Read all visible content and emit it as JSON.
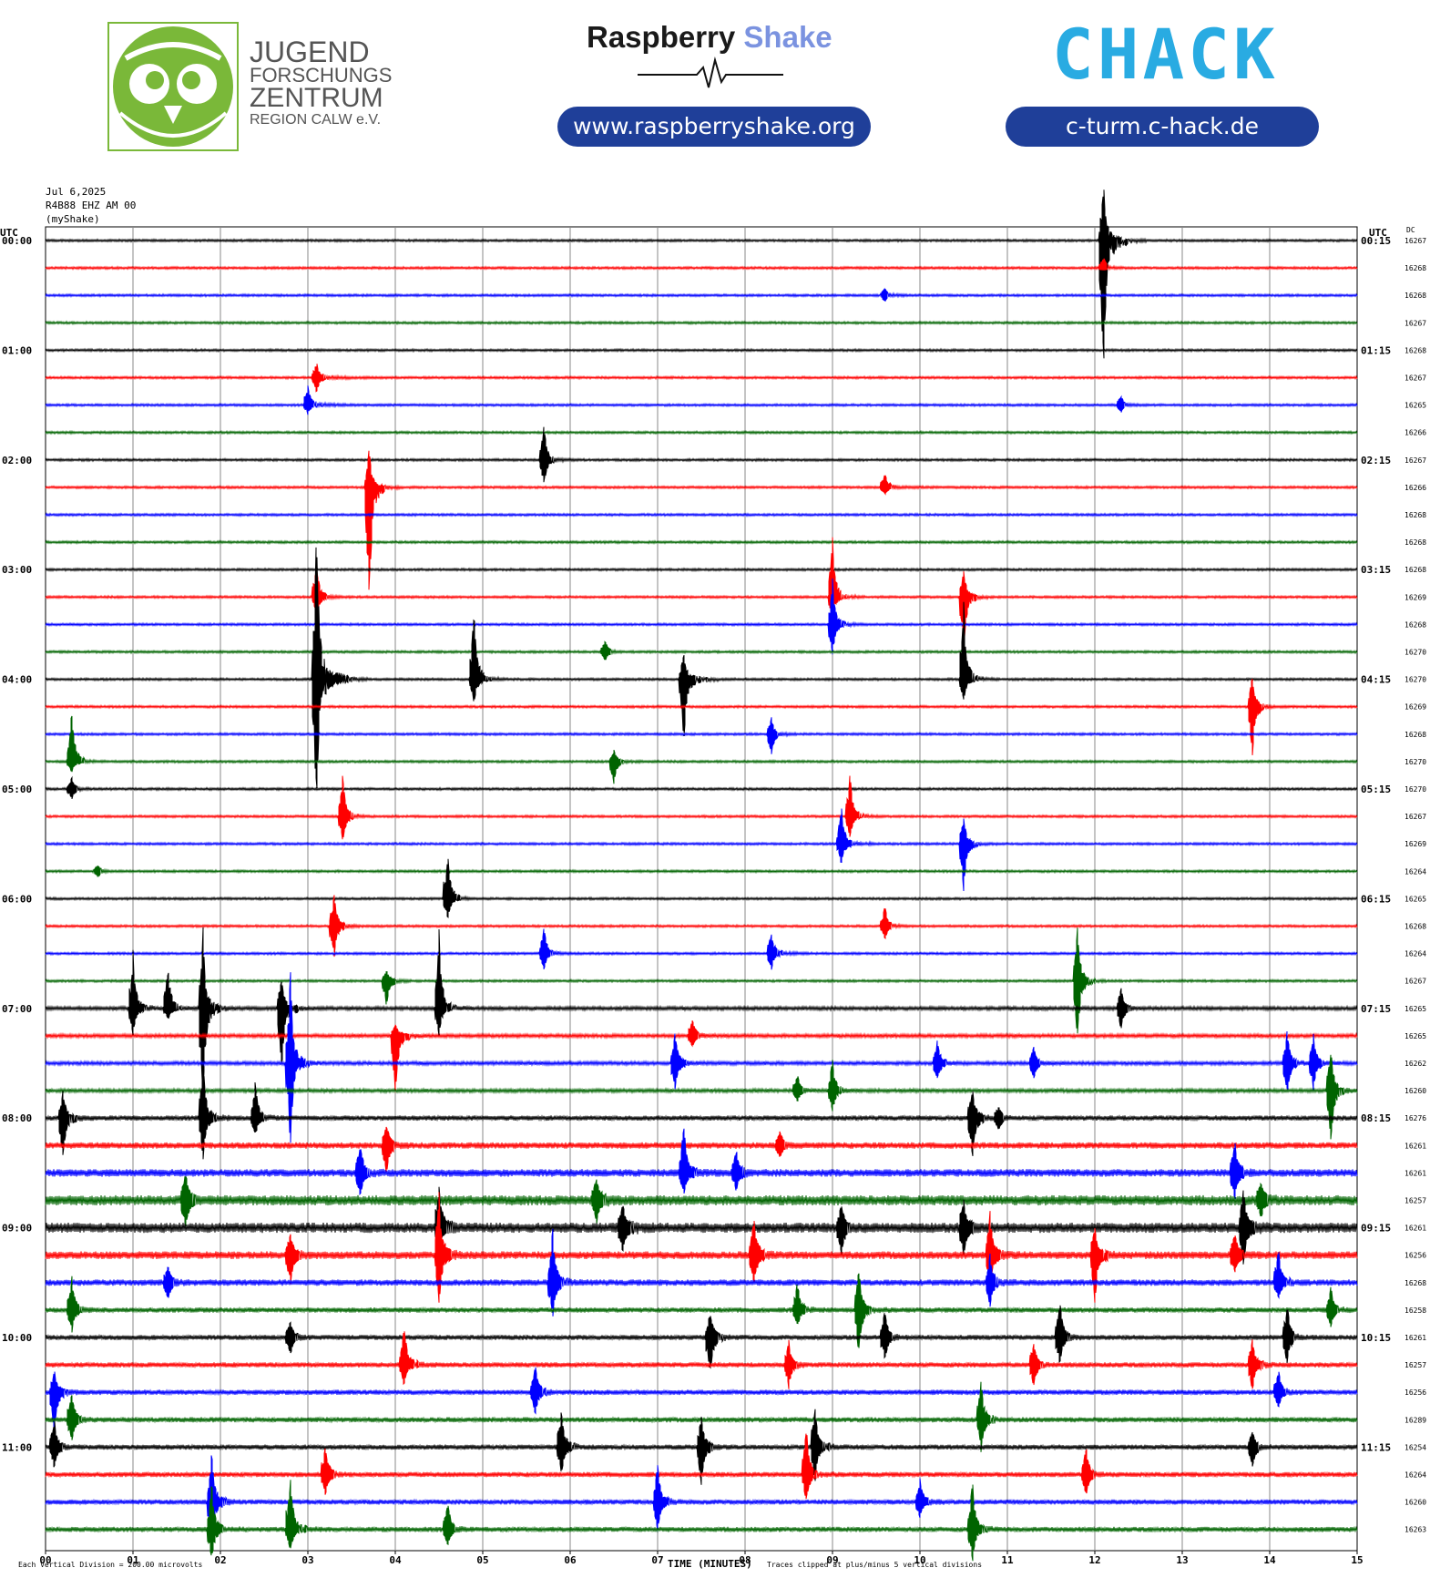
{
  "logos": {
    "jfz": {
      "line1": "JUGEND",
      "line2": "FORSCHUNGS",
      "line3": "ZENTRUM",
      "line4": "REGION CALW e.V.",
      "icon": "owl-icon",
      "color": "#7ab839"
    },
    "raspberry_shake": {
      "word1": "Raspberry",
      "word2": "Shake",
      "url": "www.raspberryshake.org",
      "icon": "seismogram-icon"
    },
    "chack": {
      "wordmark": "CHACK",
      "url": "c-turm.c-hack.de",
      "colors": [
        "#7ac142",
        "#29abe2"
      ]
    }
  },
  "chart_data": {
    "type": "helicorder",
    "date": "Jul 6,2025",
    "station": "R4B88 EHZ AM 00",
    "network": "(myShake)",
    "left_axis_title": "UTC",
    "right_axis_title": "UTC",
    "dc_title": "DC",
    "left_hour_labels": [
      "00:00",
      "01:00",
      "02:00",
      "03:00",
      "04:00",
      "05:00",
      "06:00",
      "07:00",
      "08:00",
      "09:00",
      "10:00",
      "11:00"
    ],
    "right_hour_labels": [
      "00:15",
      "01:15",
      "02:15",
      "03:15",
      "04:15",
      "05:15",
      "06:15",
      "07:15",
      "08:15",
      "09:15",
      "10:15",
      "11:15"
    ],
    "dc_values": [
      16267,
      16268,
      16268,
      16267,
      16268,
      16267,
      16265,
      16266,
      16267,
      16266,
      16268,
      16268,
      16268,
      16269,
      16268,
      16270,
      16270,
      16269,
      16268,
      16270,
      16270,
      16267,
      16269,
      16264,
      16265,
      16268,
      16264,
      16267,
      16265,
      16265,
      16262,
      16260,
      16276,
      16261,
      16261,
      16257,
      16261,
      16256,
      16268,
      16258,
      16261,
      16257,
      16256,
      16289,
      16254,
      16264,
      16260,
      16263
    ],
    "x_ticks": [
      "00",
      "01",
      "02",
      "03",
      "04",
      "05",
      "06",
      "07",
      "08",
      "09",
      "10",
      "11",
      "12",
      "13",
      "14",
      "15"
    ],
    "xlabel": "TIME (MINUTES)",
    "footer_left": "Each Vertical Division =  200.00 microvolts",
    "footer_right": "Traces clipped at plus/minus 5 vertical divisions",
    "trace_colors": [
      "#000000",
      "#ff0000",
      "#0000ff",
      "#006400"
    ],
    "rows": 48,
    "minutes_per_row": 15,
    "noise_level": [
      1,
      1,
      1,
      1,
      1,
      1,
      1,
      1,
      1,
      1,
      1,
      1,
      1,
      1,
      1,
      1,
      1,
      1,
      1,
      1,
      1,
      1,
      1,
      1,
      1,
      1,
      1,
      1,
      1.5,
      1.5,
      1.5,
      1.5,
      2,
      2.5,
      3,
      4,
      4,
      3,
      2.5,
      2,
      2,
      2,
      2,
      2,
      2,
      2,
      2,
      2
    ],
    "events": [
      [
        0,
        12.1,
        55,
        140,
        2.5
      ],
      [
        1,
        12.1,
        10,
        1,
        2
      ],
      [
        2,
        9.6,
        6,
        5,
        3
      ],
      [
        5,
        3.1,
        14,
        14,
        4
      ],
      [
        6,
        3.0,
        18,
        8,
        4
      ],
      [
        6,
        12.3,
        8,
        6,
        2
      ],
      [
        8,
        5.7,
        32,
        25,
        2
      ],
      [
        9,
        3.7,
        35,
        120,
        2
      ],
      [
        9,
        9.6,
        12,
        6,
        4
      ],
      [
        13,
        3.1,
        30,
        20,
        2
      ],
      [
        13,
        9.0,
        55,
        20,
        2
      ],
      [
        13,
        10.5,
        25,
        50,
        2
      ],
      [
        14,
        9.0,
        40,
        30,
        2
      ],
      [
        15,
        6.4,
        10,
        8,
        2
      ],
      [
        16,
        3.1,
        140,
        130,
        3
      ],
      [
        16,
        4.9,
        70,
        25,
        2
      ],
      [
        16,
        7.3,
        25,
        60,
        3
      ],
      [
        16,
        10.5,
        70,
        20,
        2
      ],
      [
        17,
        13.8,
        30,
        50,
        2
      ],
      [
        18,
        8.3,
        15,
        20,
        2
      ],
      [
        19,
        6.5,
        10,
        20,
        2
      ],
      [
        19,
        0.3,
        50,
        10,
        2
      ],
      [
        20,
        0.3,
        10,
        10,
        2
      ],
      [
        21,
        3.4,
        40,
        25,
        2
      ],
      [
        21,
        9.2,
        40,
        20,
        2
      ],
      [
        22,
        9.1,
        35,
        20,
        3
      ],
      [
        22,
        10.5,
        25,
        45,
        2
      ],
      [
        23,
        0.6,
        5,
        5,
        2
      ],
      [
        24,
        4.6,
        45,
        20,
        2
      ],
      [
        25,
        3.3,
        30,
        30,
        2
      ],
      [
        25,
        9.6,
        18,
        12,
        2
      ],
      [
        26,
        5.7,
        25,
        15,
        2
      ],
      [
        26,
        8.3,
        20,
        15,
        3
      ],
      [
        27,
        3.9,
        10,
        25,
        2
      ],
      [
        27,
        11.8,
        50,
        60,
        2
      ],
      [
        28,
        1.0,
        50,
        25,
        2
      ],
      [
        28,
        1.4,
        40,
        10,
        2
      ],
      [
        28,
        1.8,
        75,
        90,
        2
      ],
      [
        28,
        2.7,
        30,
        60,
        2
      ],
      [
        28,
        4.5,
        70,
        25,
        2
      ],
      [
        28,
        12.3,
        18,
        20,
        2
      ],
      [
        29,
        4.0,
        10,
        60,
        2
      ],
      [
        29,
        7.4,
        15,
        10,
        2
      ],
      [
        30,
        2.8,
        85,
        80,
        2
      ],
      [
        30,
        7.2,
        30,
        25,
        2
      ],
      [
        30,
        10.2,
        20,
        15,
        2
      ],
      [
        30,
        11.3,
        15,
        15,
        2
      ],
      [
        30,
        14.2,
        30,
        30,
        2
      ],
      [
        30,
        14.5,
        25,
        25,
        2
      ],
      [
        31,
        8.6,
        15,
        10,
        2
      ],
      [
        31,
        9.0,
        28,
        20,
        2
      ],
      [
        31,
        14.7,
        40,
        50,
        2
      ],
      [
        32,
        0.2,
        25,
        40,
        2
      ],
      [
        32,
        1.8,
        55,
        40,
        2
      ],
      [
        32,
        2.4,
        35,
        15,
        2
      ],
      [
        32,
        10.6,
        28,
        40,
        2
      ],
      [
        32,
        10.9,
        10,
        10,
        2
      ],
      [
        33,
        3.9,
        20,
        25,
        2
      ],
      [
        33,
        8.4,
        12,
        10,
        2
      ],
      [
        34,
        3.6,
        25,
        20,
        2
      ],
      [
        34,
        7.3,
        45,
        20,
        2
      ],
      [
        34,
        7.9,
        20,
        15,
        2
      ],
      [
        34,
        13.6,
        30,
        25,
        2
      ],
      [
        35,
        1.6,
        25,
        25,
        2
      ],
      [
        35,
        6.3,
        20,
        20,
        2
      ],
      [
        35,
        13.9,
        15,
        15,
        2
      ],
      [
        36,
        4.5,
        40,
        15,
        2
      ],
      [
        36,
        6.6,
        20,
        20,
        3
      ],
      [
        36,
        9.1,
        20,
        25,
        2
      ],
      [
        36,
        10.5,
        25,
        25,
        2
      ],
      [
        36,
        13.7,
        35,
        35,
        2
      ],
      [
        37,
        2.8,
        20,
        25,
        2
      ],
      [
        37,
        4.5,
        55,
        45,
        2
      ],
      [
        37,
        8.1,
        35,
        30,
        2
      ],
      [
        37,
        10.8,
        40,
        30,
        2
      ],
      [
        37,
        12.0,
        25,
        45,
        2
      ],
      [
        37,
        13.6,
        20,
        15,
        2
      ],
      [
        38,
        1.4,
        15,
        15,
        2
      ],
      [
        38,
        5.8,
        50,
        35,
        2
      ],
      [
        38,
        10.8,
        25,
        20,
        2
      ],
      [
        38,
        14.1,
        30,
        15,
        2
      ],
      [
        39,
        0.3,
        30,
        20,
        2
      ],
      [
        39,
        8.6,
        25,
        15,
        2
      ],
      [
        39,
        9.3,
        40,
        40,
        2
      ],
      [
        39,
        14.7,
        20,
        15,
        2
      ],
      [
        40,
        2.8,
        15,
        15,
        2
      ],
      [
        40,
        7.6,
        25,
        35,
        2
      ],
      [
        40,
        9.6,
        25,
        20,
        2
      ],
      [
        40,
        11.6,
        35,
        25,
        2
      ],
      [
        40,
        14.2,
        30,
        25,
        2
      ],
      [
        41,
        4.1,
        40,
        20,
        2
      ],
      [
        41,
        8.5,
        20,
        20,
        2
      ],
      [
        41,
        11.3,
        20,
        20,
        2
      ],
      [
        41,
        13.8,
        25,
        25,
        2
      ],
      [
        42,
        0.1,
        20,
        40,
        2
      ],
      [
        42,
        5.6,
        25,
        20,
        2
      ],
      [
        42,
        14.1,
        20,
        15,
        2
      ],
      [
        43,
        0.3,
        25,
        20,
        2
      ],
      [
        43,
        10.7,
        35,
        30,
        2
      ],
      [
        44,
        0.1,
        25,
        20,
        2
      ],
      [
        44,
        5.9,
        35,
        25,
        2
      ],
      [
        44,
        7.5,
        30,
        35,
        2
      ],
      [
        44,
        8.8,
        40,
        30,
        2
      ],
      [
        44,
        13.8,
        15,
        20,
        2
      ],
      [
        45,
        3.2,
        25,
        20,
        2
      ],
      [
        45,
        8.7,
        45,
        25,
        2
      ],
      [
        45,
        11.9,
        25,
        20,
        2
      ],
      [
        46,
        1.9,
        45,
        50,
        2
      ],
      [
        46,
        7.0,
        35,
        25,
        2
      ],
      [
        46,
        10.0,
        20,
        15,
        2
      ],
      [
        47,
        1.9,
        45,
        30,
        2
      ],
      [
        47,
        2.8,
        50,
        20,
        2
      ],
      [
        47,
        4.6,
        25,
        15,
        2
      ],
      [
        47,
        10.6,
        45,
        30,
        2
      ]
    ]
  }
}
